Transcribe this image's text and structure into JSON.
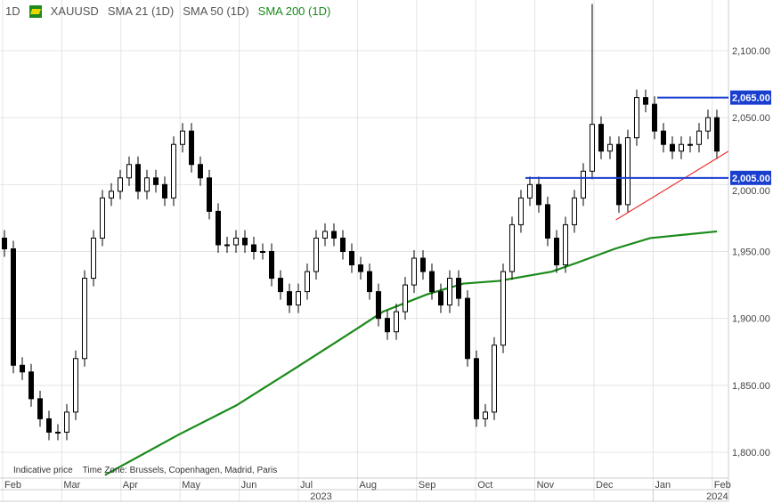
{
  "header": {
    "interval": "1D",
    "symbol": "XAUUSD",
    "sma21": "SMA 21 (1D)",
    "sma50": "SMA 50 (1D)",
    "sma200": "SMA 200 (1D)"
  },
  "footer": {
    "note": "Indicative price",
    "timezone": "Time Zone: Brussels, Copenhagen, Madrid, Paris"
  },
  "chart_data": {
    "type": "candlestick",
    "ylim": [
      1790,
      2135
    ],
    "y_ticks": [
      {
        "v": 2100,
        "label": "2,100.00"
      },
      {
        "v": 2050,
        "label": "2,050.00"
      },
      {
        "v": 2000,
        "label": "2,000.00"
      },
      {
        "v": 1950,
        "label": "1,950.00"
      },
      {
        "v": 1900,
        "label": "1,900.00"
      },
      {
        "v": 1850,
        "label": "1,850.00"
      },
      {
        "v": 1800,
        "label": "1,800.00"
      }
    ],
    "x_months": [
      "Feb",
      "Mar",
      "Apr",
      "May",
      "Jun",
      "Jul",
      "Aug",
      "Sep",
      "Oct",
      "Nov",
      "Dec",
      "Jan",
      "Feb"
    ],
    "x_years": [
      {
        "label": "2023",
        "month": 5.2
      },
      {
        "label": "2024",
        "month": 11.9
      }
    ],
    "candle_step_months": 0.1506,
    "closes": [
      1952,
      1865,
      1860,
      1840,
      1825,
      1815,
      1815,
      1830,
      1870,
      1930,
      1960,
      1990,
      1995,
      2005,
      2015,
      1995,
      2005,
      2000,
      1990,
      2030,
      2040,
      2015,
      2005,
      1980,
      1955,
      1955,
      1960,
      1955,
      1950,
      1950,
      1930,
      1920,
      1910,
      1920,
      1935,
      1960,
      1965,
      1960,
      1950,
      1940,
      1935,
      1920,
      1900,
      1890,
      1905,
      1925,
      1945,
      1935,
      1920,
      1910,
      1930,
      1915,
      1870,
      1825,
      1830,
      1880,
      1935,
      1970,
      1990,
      2000,
      1985,
      1960,
      1940,
      1970,
      1990,
      2010,
      2045,
      2025,
      2030,
      1985,
      2035,
      2065,
      2060,
      2040,
      2030,
      2025,
      2030,
      2030,
      2040,
      2050,
      2025
    ],
    "wick_overrides": [
      {
        "index": 66,
        "high": 2135
      }
    ],
    "sma200": [
      [
        1.73,
        1783
      ],
      [
        2.97,
        1813
      ],
      [
        3.95,
        1835
      ],
      [
        4.92,
        1862
      ],
      [
        5.98,
        1892
      ],
      [
        6.43,
        1905
      ],
      [
        7.18,
        1918
      ],
      [
        7.79,
        1926
      ],
      [
        8.39,
        1928
      ],
      [
        9.29,
        1935
      ],
      [
        9.74,
        1942
      ],
      [
        10.35,
        1952
      ],
      [
        10.95,
        1960
      ],
      [
        11.4,
        1962
      ],
      [
        12.08,
        1965
      ]
    ],
    "levels": [
      {
        "value": 2065,
        "label": "2,065.00",
        "from_month": 11.07
      },
      {
        "value": 2005,
        "label": "2,005.00",
        "from_month": 8.84
      }
    ],
    "trendline": [
      [
        10.37,
        1973.6
      ],
      [
        12.27,
        2024.8
      ]
    ],
    "colors": {
      "sma200": "#1a8a1a",
      "level": "#1a3fcf",
      "trend": "#e83030",
      "up": "#ffffff",
      "down": "#000000"
    }
  }
}
